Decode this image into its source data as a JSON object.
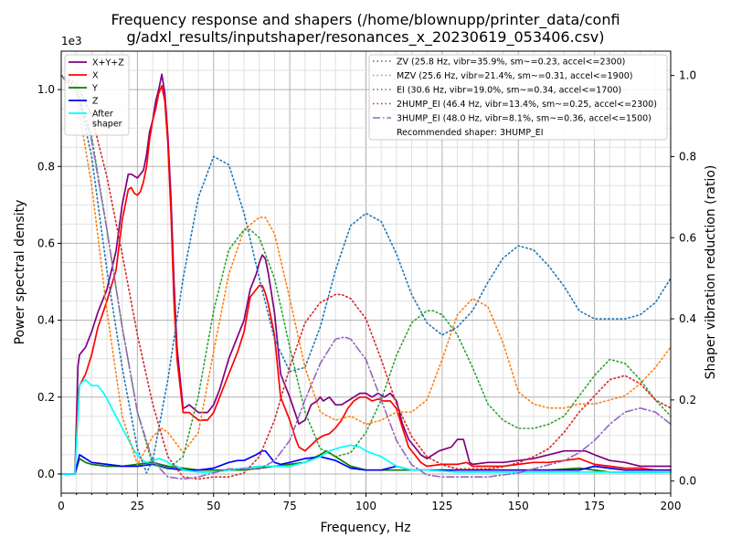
{
  "chart_data": {
    "type": "line",
    "title_line1": "Frequency response and shapers (/home/blownupp/printer_data/confi",
    "title_line2": "g/adxl_results/inputshaper/resonances_x_20230619_053406.csv)",
    "xlabel": "Frequency, Hz",
    "ylabel": "Power spectral density",
    "y2label": "Shaper vibration reduction (ratio)",
    "y_exponent_label": "1e3",
    "xlim": [
      0,
      200
    ],
    "ylim": [
      -0.05,
      1.1
    ],
    "y2lim": [
      -0.03,
      1.06
    ],
    "grid": true,
    "x_ticks": [
      0,
      25,
      50,
      75,
      100,
      125,
      150,
      175,
      200
    ],
    "y_ticks": [
      0.0,
      0.2,
      0.4,
      0.6,
      0.8,
      1.0
    ],
    "y_tick_labels": [
      "0.0",
      "0.2",
      "0.4",
      "0.6",
      "0.8",
      "1.0"
    ],
    "y2_ticks": [
      0.0,
      0.2,
      0.4,
      0.6,
      0.8,
      1.0
    ],
    "y2_tick_labels": [
      "0.0",
      "0.2",
      "0.4",
      "0.6",
      "0.8",
      "1.0"
    ],
    "legend_left_placement": "upper-left",
    "legend_right_placement": "upper-right",
    "recommended_text": "Recommended shaper: 3HUMP_EI",
    "psd_series": [
      {
        "name": "X+Y+Z",
        "color": "#800080",
        "style": "solid",
        "x": [
          0,
          4.5,
          5.5,
          6,
          7,
          8,
          10,
          12,
          15,
          18,
          20,
          22,
          23,
          24,
          25,
          26,
          27,
          28,
          29,
          30,
          31,
          32,
          33,
          34,
          35,
          36,
          37,
          38,
          40,
          42,
          45,
          48,
          50,
          52,
          55,
          58,
          60,
          62,
          64,
          65,
          66,
          67,
          68,
          70,
          72,
          75,
          78,
          80,
          82,
          84,
          85,
          86,
          88,
          90,
          92,
          94,
          96,
          98,
          100,
          102,
          104,
          106,
          108,
          110,
          112,
          114,
          116,
          118,
          120,
          122,
          124,
          126,
          128,
          130,
          131,
          132,
          133,
          134,
          135,
          140,
          145,
          150,
          155,
          160,
          165,
          170,
          172,
          175,
          180,
          185,
          190,
          195,
          200
        ],
        "y": [
          0,
          0,
          0.28,
          0.31,
          0.32,
          0.33,
          0.37,
          0.42,
          0.48,
          0.58,
          0.7,
          0.78,
          0.78,
          0.775,
          0.77,
          0.78,
          0.79,
          0.83,
          0.89,
          0.92,
          0.97,
          1.0,
          1.04,
          0.99,
          0.88,
          0.72,
          0.5,
          0.33,
          0.17,
          0.18,
          0.16,
          0.16,
          0.18,
          0.22,
          0.3,
          0.36,
          0.4,
          0.48,
          0.52,
          0.55,
          0.57,
          0.56,
          0.52,
          0.42,
          0.26,
          0.2,
          0.13,
          0.14,
          0.18,
          0.19,
          0.2,
          0.19,
          0.2,
          0.18,
          0.18,
          0.19,
          0.2,
          0.21,
          0.21,
          0.2,
          0.21,
          0.2,
          0.21,
          0.19,
          0.13,
          0.09,
          0.07,
          0.05,
          0.04,
          0.05,
          0.06,
          0.065,
          0.07,
          0.09,
          0.09,
          0.09,
          0.06,
          0.03,
          0.025,
          0.03,
          0.03,
          0.035,
          0.04,
          0.05,
          0.06,
          0.06,
          0.06,
          0.05,
          0.035,
          0.03,
          0.02,
          0.02,
          0.02
        ]
      },
      {
        "name": "X",
        "color": "#ff0000",
        "style": "solid",
        "x": [
          0,
          4.5,
          5.5,
          6,
          8,
          10,
          12,
          15,
          18,
          20,
          22,
          23,
          24,
          25,
          26,
          27,
          28,
          29,
          30,
          31,
          32,
          33,
          34,
          35,
          36,
          37,
          38,
          40,
          42,
          45,
          48,
          50,
          52,
          55,
          58,
          60,
          62,
          64,
          65,
          66,
          67,
          68,
          70,
          72,
          75,
          77,
          78,
          80,
          82,
          84,
          86,
          88,
          90,
          92,
          94,
          96,
          98,
          100,
          102,
          104,
          106,
          108,
          110,
          112,
          114,
          116,
          118,
          120,
          125,
          130,
          133,
          135,
          140,
          145,
          150,
          155,
          160,
          165,
          170,
          175,
          180,
          185,
          190,
          195,
          200
        ],
        "y": [
          0,
          0,
          0.2,
          0.23,
          0.26,
          0.31,
          0.38,
          0.45,
          0.53,
          0.66,
          0.74,
          0.745,
          0.73,
          0.725,
          0.735,
          0.76,
          0.8,
          0.87,
          0.92,
          0.95,
          0.99,
          1.01,
          0.97,
          0.86,
          0.68,
          0.45,
          0.3,
          0.16,
          0.16,
          0.14,
          0.14,
          0.16,
          0.2,
          0.26,
          0.32,
          0.37,
          0.46,
          0.48,
          0.49,
          0.49,
          0.47,
          0.44,
          0.36,
          0.2,
          0.14,
          0.09,
          0.07,
          0.06,
          0.075,
          0.09,
          0.1,
          0.105,
          0.12,
          0.14,
          0.17,
          0.19,
          0.2,
          0.2,
          0.19,
          0.195,
          0.19,
          0.19,
          0.17,
          0.12,
          0.07,
          0.05,
          0.03,
          0.02,
          0.025,
          0.025,
          0.03,
          0.02,
          0.02,
          0.02,
          0.025,
          0.03,
          0.03,
          0.035,
          0.04,
          0.025,
          0.02,
          0.015,
          0.015,
          0.01,
          0.01
        ]
      },
      {
        "name": "Y",
        "color": "#008000",
        "style": "solid",
        "x": [
          0,
          4.5,
          6,
          8,
          10,
          15,
          20,
          25,
          30,
          35,
          40,
          45,
          50,
          55,
          60,
          65,
          70,
          75,
          80,
          85,
          87,
          90,
          95,
          100,
          110,
          120,
          130,
          140,
          150,
          160,
          170,
          180,
          190,
          200
        ],
        "y": [
          0,
          0,
          0.04,
          0.03,
          0.025,
          0.02,
          0.02,
          0.025,
          0.03,
          0.02,
          0.015,
          0.01,
          0.01,
          0.01,
          0.01,
          0.015,
          0.02,
          0.025,
          0.03,
          0.05,
          0.06,
          0.045,
          0.02,
          0.01,
          0.01,
          0.01,
          0.01,
          0.01,
          0.01,
          0.01,
          0.015,
          0.005,
          0.005,
          0.005
        ]
      },
      {
        "name": "Z",
        "color": "#0000ff",
        "style": "solid",
        "x": [
          0,
          4.5,
          6,
          8,
          10,
          15,
          20,
          25,
          30,
          35,
          40,
          45,
          50,
          55,
          58,
          60,
          64,
          66,
          67,
          68,
          70,
          72,
          75,
          80,
          85,
          90,
          95,
          100,
          105,
          110,
          115,
          120,
          130,
          140,
          150,
          160,
          170,
          175,
          180,
          185,
          190,
          195,
          200
        ],
        "y": [
          0,
          0,
          0.05,
          0.04,
          0.03,
          0.025,
          0.02,
          0.02,
          0.025,
          0.015,
          0.01,
          0.01,
          0.015,
          0.03,
          0.035,
          0.035,
          0.05,
          0.06,
          0.06,
          0.05,
          0.03,
          0.025,
          0.03,
          0.04,
          0.045,
          0.035,
          0.015,
          0.01,
          0.01,
          0.02,
          0.01,
          0.01,
          0.01,
          0.01,
          0.01,
          0.01,
          0.01,
          0.02,
          0.015,
          0.01,
          0.01,
          0.01,
          0.01
        ]
      },
      {
        "name": "After\nshaper",
        "color": "#00ffff",
        "style": "solid",
        "x": [
          0,
          4.5,
          6,
          7,
          8,
          10,
          12,
          14,
          16,
          18,
          20,
          22,
          24,
          26,
          28,
          30,
          32,
          34,
          36,
          38,
          40,
          45,
          50,
          55,
          60,
          65,
          70,
          75,
          80,
          85,
          88,
          90,
          92,
          95,
          98,
          100,
          105,
          110,
          115,
          120,
          130,
          140,
          150,
          160,
          170,
          180,
          190,
          200
        ],
        "y": [
          0,
          0,
          0.23,
          0.24,
          0.245,
          0.23,
          0.23,
          0.21,
          0.18,
          0.15,
          0.12,
          0.09,
          0.06,
          0.04,
          0.03,
          0.035,
          0.04,
          0.035,
          0.025,
          0.02,
          0.01,
          0.005,
          0.005,
          0.01,
          0.015,
          0.02,
          0.02,
          0.02,
          0.03,
          0.045,
          0.06,
          0.065,
          0.07,
          0.075,
          0.07,
          0.06,
          0.045,
          0.02,
          0.01,
          0.01,
          0.005,
          0.005,
          0.005,
          0.005,
          0.005,
          0.005,
          0.005,
          0.005
        ]
      }
    ],
    "shaper_series": [
      {
        "name": "ZV (25.8 Hz, vibr=35.9%, sm~=0.23, accel<=2300)",
        "color": "#1f77b4",
        "style": "dotted",
        "x": [
          0,
          5,
          10,
          15,
          20,
          25,
          28,
          30,
          35,
          40,
          45,
          50,
          55,
          60,
          65,
          70,
          75,
          80,
          85,
          90,
          95,
          100,
          105,
          110,
          115,
          120,
          125,
          130,
          135,
          140,
          145,
          150,
          155,
          160,
          165,
          170,
          175,
          180,
          185,
          190,
          195,
          200
        ],
        "y": [
          1.0,
          0.97,
          0.8,
          0.52,
          0.28,
          0.08,
          0.02,
          0.05,
          0.25,
          0.5,
          0.7,
          0.8,
          0.78,
          0.66,
          0.5,
          0.35,
          0.27,
          0.28,
          0.38,
          0.52,
          0.63,
          0.66,
          0.64,
          0.56,
          0.46,
          0.39,
          0.36,
          0.38,
          0.42,
          0.49,
          0.55,
          0.58,
          0.57,
          0.53,
          0.48,
          0.42,
          0.4,
          0.4,
          0.4,
          0.41,
          0.44,
          0.5
        ]
      },
      {
        "name": "MZV (25.6 Hz, vibr=21.4%, sm~=0.31, accel<=1900)",
        "color": "#ff7f0e",
        "style": "dotted",
        "x": [
          0,
          5,
          10,
          15,
          20,
          25,
          30,
          33,
          35,
          40,
          45,
          50,
          55,
          60,
          65,
          67,
          70,
          75,
          80,
          85,
          90,
          95,
          100,
          105,
          110,
          115,
          120,
          125,
          130,
          135,
          140,
          145,
          150,
          155,
          160,
          165,
          170,
          175,
          180,
          185,
          190,
          195,
          200
        ],
        "y": [
          1.0,
          0.95,
          0.73,
          0.42,
          0.16,
          0.04,
          0.11,
          0.13,
          0.12,
          0.07,
          0.12,
          0.32,
          0.51,
          0.62,
          0.65,
          0.65,
          0.61,
          0.45,
          0.28,
          0.17,
          0.15,
          0.16,
          0.14,
          0.15,
          0.17,
          0.17,
          0.2,
          0.3,
          0.41,
          0.45,
          0.43,
          0.34,
          0.22,
          0.19,
          0.18,
          0.18,
          0.19,
          0.19,
          0.2,
          0.21,
          0.24,
          0.28,
          0.33
        ]
      },
      {
        "name": "EI (30.6 Hz, vibr=19.0%, sm~=0.34, accel<=1700)",
        "color": "#2ca02c",
        "style": "dotted",
        "x": [
          0,
          5,
          10,
          15,
          20,
          25,
          30,
          35,
          40,
          45,
          50,
          55,
          60,
          62,
          65,
          70,
          75,
          80,
          85,
          90,
          95,
          100,
          105,
          110,
          115,
          120,
          122,
          125,
          130,
          135,
          140,
          145,
          150,
          155,
          160,
          165,
          170,
          175,
          180,
          185,
          190,
          195,
          200
        ],
        "y": [
          1.0,
          0.97,
          0.85,
          0.62,
          0.38,
          0.17,
          0.04,
          0.03,
          0.06,
          0.21,
          0.42,
          0.57,
          0.62,
          0.62,
          0.6,
          0.5,
          0.33,
          0.17,
          0.08,
          0.06,
          0.07,
          0.12,
          0.2,
          0.31,
          0.39,
          0.42,
          0.42,
          0.41,
          0.36,
          0.28,
          0.19,
          0.15,
          0.13,
          0.13,
          0.14,
          0.16,
          0.21,
          0.26,
          0.3,
          0.29,
          0.25,
          0.2,
          0.16
        ]
      },
      {
        "name": "2HUMP_EI (46.4 Hz, vibr=13.4%, sm~=0.25, accel<=2300)",
        "color": "#d62728",
        "style": "dotted",
        "x": [
          0,
          5,
          10,
          15,
          20,
          25,
          30,
          35,
          40,
          45,
          50,
          55,
          60,
          65,
          70,
          75,
          80,
          85,
          90,
          92,
          95,
          100,
          105,
          110,
          115,
          120,
          125,
          130,
          135,
          140,
          145,
          150,
          155,
          160,
          165,
          170,
          175,
          180,
          185,
          190,
          195,
          200
        ],
        "y": [
          1.0,
          0.98,
          0.9,
          0.75,
          0.56,
          0.36,
          0.19,
          0.06,
          0.01,
          0.005,
          0.01,
          0.01,
          0.02,
          0.06,
          0.15,
          0.28,
          0.39,
          0.44,
          0.46,
          0.46,
          0.45,
          0.4,
          0.3,
          0.19,
          0.11,
          0.06,
          0.04,
          0.03,
          0.03,
          0.03,
          0.035,
          0.045,
          0.06,
          0.08,
          0.12,
          0.17,
          0.21,
          0.25,
          0.26,
          0.24,
          0.2,
          0.18
        ]
      },
      {
        "name": "3HUMP_EI (48.0 Hz, vibr=8.1%, sm~=0.36, accel<=1500)",
        "color": "#9467bd",
        "style": "dashdot",
        "x": [
          0,
          5,
          10,
          15,
          20,
          25,
          30,
          35,
          40,
          45,
          50,
          55,
          60,
          65,
          70,
          75,
          80,
          85,
          90,
          93,
          95,
          100,
          105,
          110,
          115,
          120,
          125,
          130,
          135,
          140,
          145,
          150,
          155,
          160,
          165,
          170,
          175,
          180,
          185,
          190,
          195,
          200
        ],
        "y": [
          1.0,
          0.96,
          0.84,
          0.62,
          0.38,
          0.17,
          0.05,
          0.01,
          0.005,
          0.01,
          0.02,
          0.03,
          0.03,
          0.03,
          0.05,
          0.1,
          0.2,
          0.29,
          0.35,
          0.355,
          0.35,
          0.3,
          0.2,
          0.1,
          0.04,
          0.015,
          0.01,
          0.01,
          0.01,
          0.01,
          0.015,
          0.02,
          0.03,
          0.04,
          0.05,
          0.07,
          0.1,
          0.14,
          0.17,
          0.18,
          0.17,
          0.14
        ]
      }
    ]
  }
}
